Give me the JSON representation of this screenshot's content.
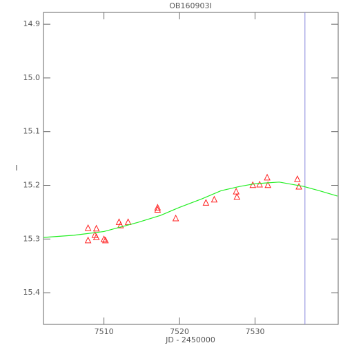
{
  "chart_data": {
    "type": "scatter",
    "title": "OB160903I",
    "x_label": "JD - 2450000",
    "y_label": "I",
    "xlim": [
      7502,
      7541
    ],
    "ylim": [
      15.459,
      14.878
    ],
    "xticks": [
      7510,
      7520,
      7530
    ],
    "yticks": [
      14.9,
      {
        "value": 15,
        "label": "15.0"
      },
      15.1,
      15.2,
      15.3,
      15.4
    ],
    "vline": {
      "x": 7536.6,
      "color": "#8888dd"
    },
    "series": [
      {
        "mode": "markers",
        "color": "#ff2020",
        "x": [
          7507.9,
          7507.9,
          7509.0,
          7508.8,
          7509.0,
          7510.0,
          7510.2,
          7512.0,
          7512.2,
          7513.2,
          7517.1,
          7517.1,
          7519.5,
          7523.5,
          7524.6,
          7527.5,
          7527.6,
          7529.7,
          7530.6,
          7531.6,
          7531.7,
          7535.6,
          7535.8
        ],
        "values": [
          15.279,
          15.302,
          15.28,
          15.292,
          15.296,
          15.3,
          15.302,
          15.268,
          15.274,
          15.268,
          15.241,
          15.245,
          15.261,
          15.232,
          15.226,
          15.211,
          15.221,
          15.199,
          15.198,
          15.185,
          15.199,
          15.188,
          15.202
        ]
      },
      {
        "mode": "line",
        "color": "#22ee22",
        "x": [
          7502,
          7506,
          7510,
          7514.5,
          7517.5,
          7520,
          7523,
          7525.5,
          7528,
          7530,
          7533.2,
          7536.4,
          7538.5,
          7540.9
        ],
        "values": [
          15.297,
          15.293,
          15.286,
          15.269,
          15.256,
          15.241,
          15.225,
          15.21,
          15.202,
          15.197,
          15.194,
          15.202,
          15.21,
          15.22
        ]
      }
    ]
  }
}
